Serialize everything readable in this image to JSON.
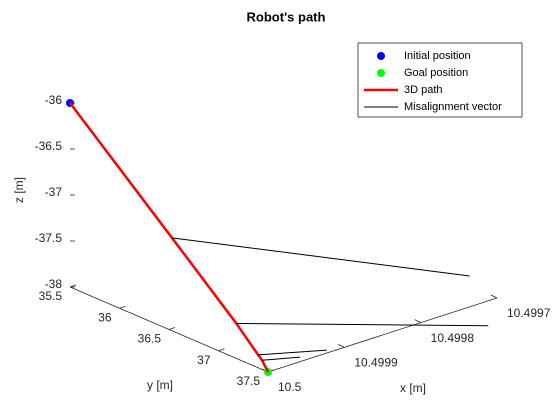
{
  "chart_data": {
    "type": "line3d",
    "title": "Robot's path",
    "xlabel": "x [m]",
    "ylabel": "y [m]",
    "zlabel": "z [m]",
    "xlim": [
      10.4997,
      10.5
    ],
    "ylim": [
      35.5,
      37.5
    ],
    "zlim": [
      -38,
      -36
    ],
    "xticks": [
      10.4997,
      10.4998,
      10.4999,
      10.5
    ],
    "yticks": [
      35.5,
      36,
      36.5,
      37,
      37.5
    ],
    "zticks": [
      -38,
      -37.5,
      -37,
      -36.5,
      -36
    ],
    "legend": "upper right",
    "series": [
      {
        "name": "Initial position",
        "color": "#0000ff",
        "marker": true,
        "x": [
          10.5
        ],
        "y": [
          35.5
        ],
        "z": [
          -36
        ]
      },
      {
        "name": "Goal position",
        "color": "#00ff00",
        "marker": true,
        "x": [
          10.5
        ],
        "y": [
          37.5
        ],
        "z": [
          -38
        ]
      },
      {
        "name": "3D path",
        "color": "#ff0000",
        "marker": false,
        "x": [
          10.5,
          10.5,
          10.5,
          10.5,
          10.5,
          10.5
        ],
        "y": [
          35.5,
          36.53,
          37.18,
          37.4,
          37.44,
          37.5
        ],
        "z": [
          -36,
          -36.99,
          -37.62,
          -37.86,
          -37.9,
          -38
        ]
      },
      {
        "name": "Misalignment vector",
        "color": "#000000",
        "marker": false,
        "x": [
          10.5,
          10.49961,
          null,
          10.5,
          10.49967,
          null,
          10.5,
          10.49991,
          null,
          10.5,
          10.49995
        ],
        "y": [
          36.53,
          36.53,
          null,
          37.18,
          37.18,
          null,
          37.4,
          37.4,
          null,
          37.44,
          37.44
        ],
        "z": [
          -36.99,
          -38.45,
          null,
          -37.62,
          -38.53,
          null,
          -37.86,
          -38.05,
          null,
          -37.9,
          -38
        ]
      }
    ]
  }
}
